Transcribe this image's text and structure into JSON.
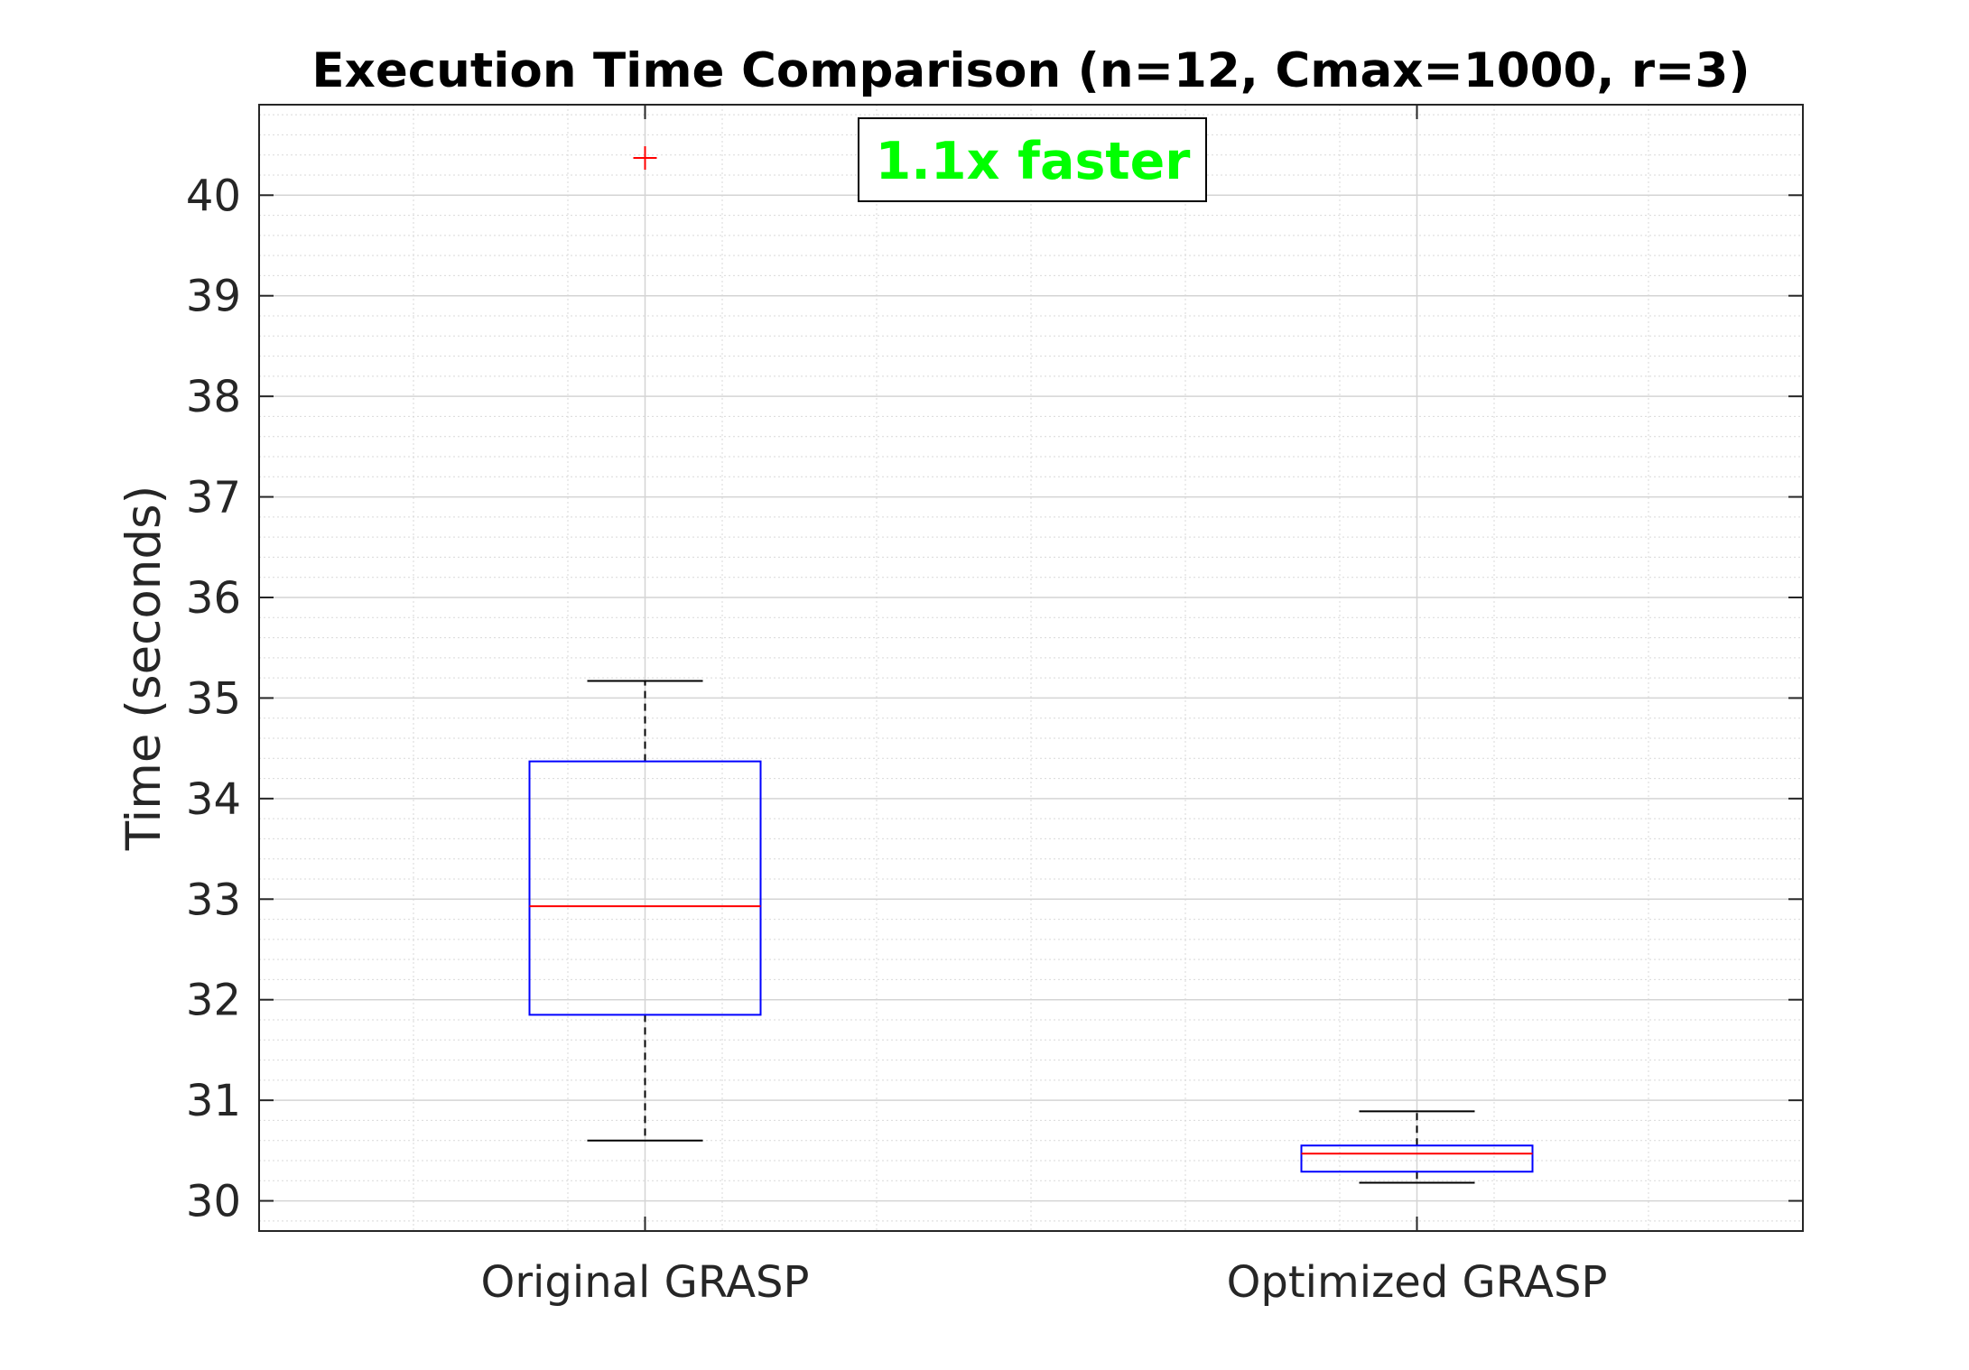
{
  "chart_data": {
    "type": "box",
    "title": "Execution Time Comparison (n=12, Cmax=1000, r=3)",
    "xlabel": "",
    "ylabel": "Time (seconds)",
    "ylim": [
      29.7,
      40.9
    ],
    "yticks": [
      30,
      31,
      32,
      33,
      34,
      35,
      36,
      37,
      38,
      39,
      40
    ],
    "grid": "major and minor",
    "categories": [
      "Original GRASP",
      "Optimized GRASP"
    ],
    "series": [
      {
        "category": "Original GRASP",
        "whisker_low": 30.6,
        "q1": 31.85,
        "median": 32.93,
        "q3": 34.37,
        "whisker_high": 35.17,
        "outliers": [
          40.37
        ]
      },
      {
        "category": "Optimized GRASP",
        "whisker_low": 30.18,
        "q1": 30.29,
        "median": 30.47,
        "q3": 30.55,
        "whisker_high": 30.89,
        "outliers": []
      }
    ],
    "annotation": {
      "text": "1.1x faster",
      "color": "#00ff00"
    },
    "colors": {
      "box": "#0000ff",
      "median": "#ff0000",
      "whisker": "#000000",
      "outlier": "#ff0000",
      "grid": "#d9d9d9"
    }
  }
}
